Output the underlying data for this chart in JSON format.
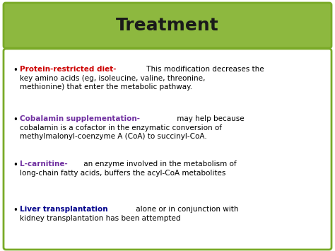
{
  "title": "Treatment",
  "title_color": "#1a1a1a",
  "title_bg_color": "#8db83f",
  "bg_color": "#ffffff",
  "border_color": "#7aaa28",
  "figsize": [
    4.74,
    3.55
  ],
  "dpi": 100,
  "bullets": [
    {
      "bold": "Protein-restricted diet-",
      "bold_color": "#cc0000",
      "lines": [
        " This modification decreases the",
        "key amino acids (eg, isoleucine, valine, threonine,",
        "methionine) that enter the metabolic pathway."
      ]
    },
    {
      "bold": "Cobalamin supplementation-",
      "bold_color": "#7030a0",
      "lines": [
        " may help because",
        "cobalamin is a cofactor in the enzymatic conversion of",
        "methylmalonyl-coenzyme A (CoA) to succinyl-CoA."
      ]
    },
    {
      "bold": "L-carnitine-",
      "bold_color": "#7030a0",
      "lines": [
        " an enzyme involved in the metabolism of",
        "long-chain fatty acids, buffers the acyl-CoA metabolites"
      ]
    },
    {
      "bold": "Liver transplantation",
      "bold_color": "#00008b",
      "lines": [
        " alone or in conjunction with",
        "kidney transplantation has been attempted"
      ]
    }
  ]
}
